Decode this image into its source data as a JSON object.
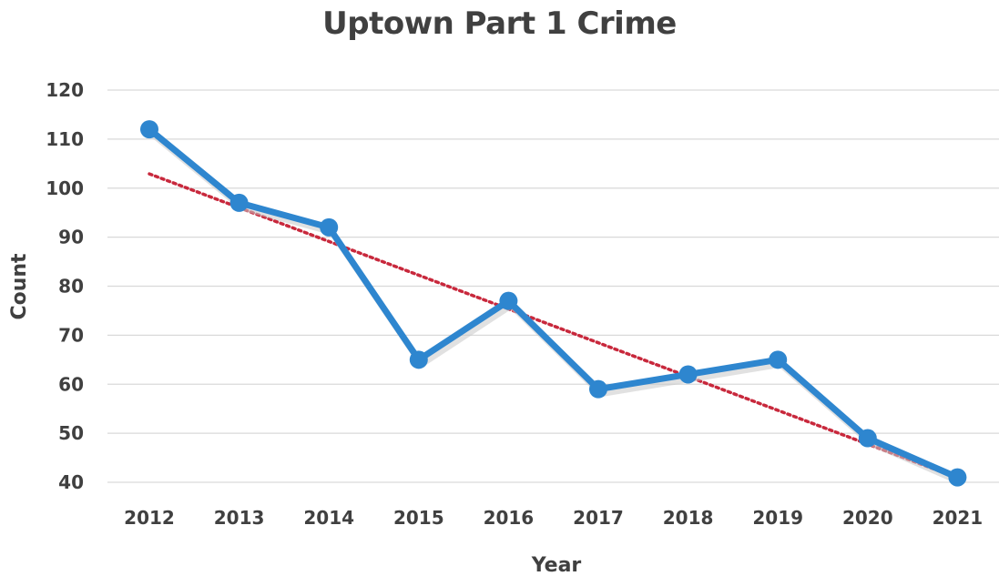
{
  "chart_data": {
    "type": "line",
    "title": "Uptown Part 1 Crime",
    "xlabel": "Year",
    "ylabel": "Count",
    "categories": [
      "2012",
      "2013",
      "2014",
      "2015",
      "2016",
      "2017",
      "2018",
      "2019",
      "2020",
      "2021"
    ],
    "series": [
      {
        "values": [
          112,
          97,
          92,
          65,
          77,
          59,
          62,
          65,
          49,
          41
        ],
        "color": "#2e86cf"
      }
    ],
    "trendline": {
      "type": "linear",
      "style": "dotted",
      "color": "#c8283c"
    },
    "ylim": [
      40,
      120
    ],
    "yticks": [
      40,
      50,
      60,
      70,
      80,
      90,
      100,
      110,
      120
    ],
    "grid": true,
    "legend": "none"
  }
}
